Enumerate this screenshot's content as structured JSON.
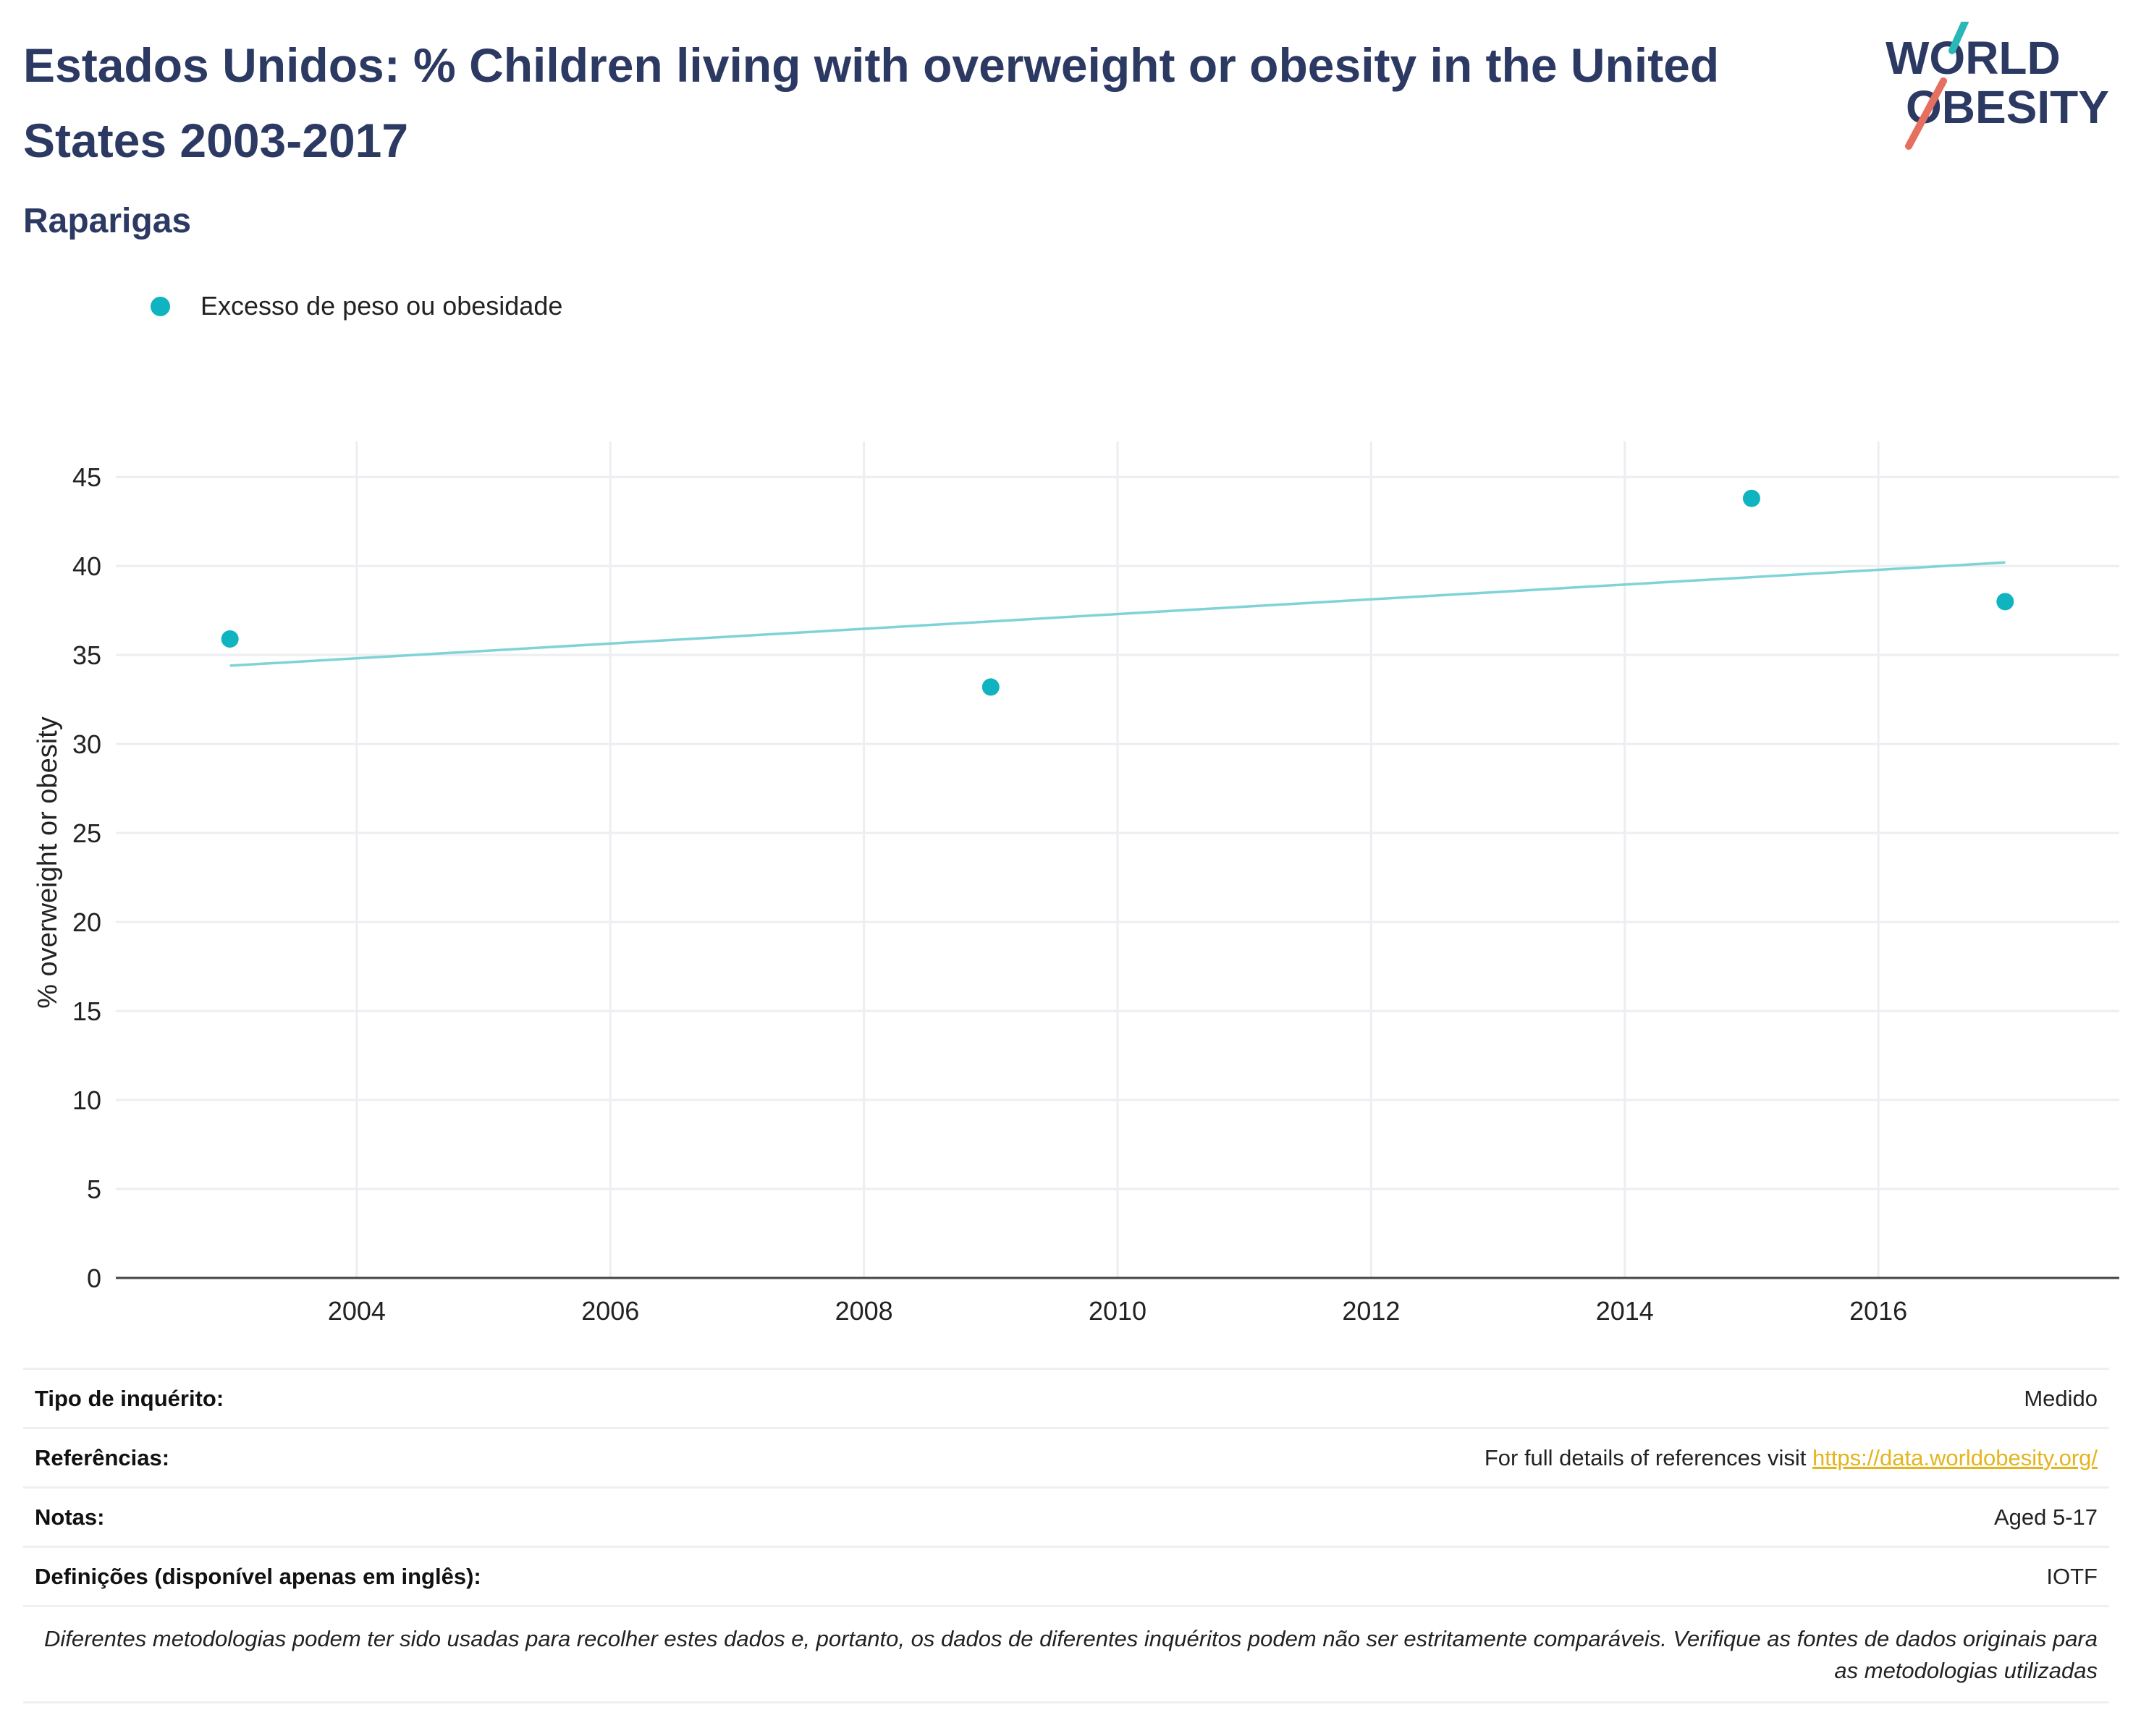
{
  "header": {
    "title": "Estados Unidos: % Children living with overweight or obesity in the United States 2003-2017",
    "subtitle": "Raparigas"
  },
  "logo": {
    "line1": "WORLD",
    "line2": "OBESITY",
    "colors": {
      "text": "#2c3a63",
      "accent_teal": "#2ab7b7",
      "accent_red": "#e5705f"
    }
  },
  "colors": {
    "series": "#0fb4c0",
    "trend": "#7fd3d6",
    "grid": "#eceef1",
    "axis": "#444444"
  },
  "chart_data": {
    "type": "scatter",
    "title": "",
    "xlabel": "",
    "ylabel": "% overweight or obesity",
    "xlim": [
      2002.1,
      2017.9
    ],
    "ylim": [
      0,
      47
    ],
    "x_ticks": [
      2004,
      2006,
      2008,
      2010,
      2012,
      2014,
      2016
    ],
    "y_ticks": [
      0,
      5,
      10,
      15,
      20,
      25,
      30,
      35,
      40,
      45
    ],
    "grid": true,
    "legend_position": "top-left",
    "series": [
      {
        "name": "Excesso de peso ou obesidade",
        "x": [
          2003,
          2009,
          2015,
          2017
        ],
        "y": [
          35.9,
          33.2,
          43.8,
          38.0
        ]
      }
    ],
    "trendline": {
      "x": [
        2003,
        2017
      ],
      "y": [
        34.4,
        40.2
      ]
    }
  },
  "meta": {
    "survey_type_label": "Tipo de inquérito:",
    "survey_type_value": "Medido",
    "references_label": "Referências:",
    "references_text": "For full details of references visit",
    "references_link": "https://data.worldobesity.org/",
    "notes_label": "Notas:",
    "notes_value": "Aged 5-17",
    "definitions_label": "Definições (disponível apenas em inglês):",
    "definitions_value": "IOTF",
    "disclaimer": "Diferentes metodologias podem ter sido usadas para recolher estes dados e, portanto, os dados de diferentes inquéritos podem não ser estritamente comparáveis. Verifique as fontes de dados originais para as metodologias utilizadas"
  }
}
